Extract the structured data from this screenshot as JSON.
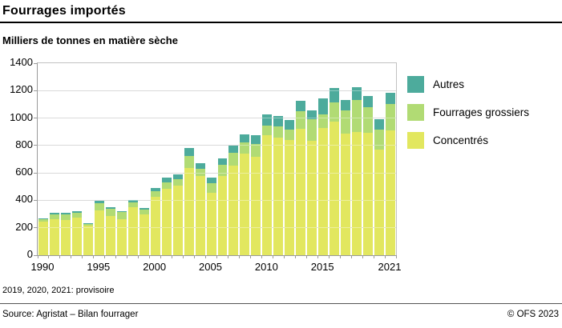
{
  "header": {
    "title": "Fourrages importés",
    "subtitle": "Milliers de tonnes en matière sèche"
  },
  "chart_data": {
    "type": "bar",
    "stacked": true,
    "title": "Fourrages importés",
    "ylabel": "Milliers de tonnes en matière sèche",
    "ylim": [
      0,
      1400
    ],
    "ytick_step": 200,
    "grid": true,
    "legend_position": "right",
    "categories": [
      "1990",
      "1991",
      "1992",
      "1993",
      "1994",
      "1995",
      "1996",
      "1997",
      "1998",
      "1999",
      "2000",
      "2001",
      "2002",
      "2003",
      "2004",
      "2005",
      "2006",
      "2007",
      "2008",
      "2009",
      "2010",
      "2011",
      "2012",
      "2013",
      "2014",
      "2015",
      "2016",
      "2017",
      "2018",
      "2019",
      "2020",
      "2021"
    ],
    "xtick_labels": [
      "1990",
      "1995",
      "2000",
      "2005",
      "2010",
      "2015",
      "2021"
    ],
    "series": [
      {
        "name": "Concentrés",
        "color": "#e2e75f",
        "values": [
          245,
          265,
          255,
          272,
          215,
          328,
          288,
          265,
          352,
          298,
          426,
          485,
          508,
          634,
          577,
          458,
          580,
          656,
          739,
          720,
          877,
          858,
          840,
          920,
          833,
          930,
          976,
          884,
          898,
          894,
          771,
          908
        ]
      },
      {
        "name": "Fourrages grossiers",
        "color": "#b1db74",
        "values": [
          18,
          35,
          45,
          38,
          13,
          53,
          52,
          50,
          35,
          32,
          43,
          47,
          48,
          88,
          52,
          70,
          82,
          91,
          82,
          90,
          71,
          79,
          78,
          132,
          156,
          99,
          137,
          170,
          236,
          183,
          146,
          194
        ]
      },
      {
        "name": "Autres",
        "color": "#4dab9c",
        "values": [
          8,
          10,
          10,
          10,
          5,
          14,
          10,
          5,
          13,
          14,
          20,
          35,
          33,
          62,
          44,
          40,
          44,
          53,
          58,
          64,
          78,
          79,
          67,
          74,
          68,
          113,
          107,
          80,
          90,
          85,
          77,
          84
        ]
      }
    ],
    "legend": [
      {
        "label": "Autres",
        "color": "#4dab9c"
      },
      {
        "label": "Fourrages grossiers",
        "color": "#b1db74"
      },
      {
        "label": "Concentrés",
        "color": "#e2e75f"
      }
    ]
  },
  "footnote": "2019, 2020, 2021: provisoire",
  "footer": {
    "source": "Source: Agristat – Bilan fourrager",
    "copyright": "© OFS 2023"
  }
}
